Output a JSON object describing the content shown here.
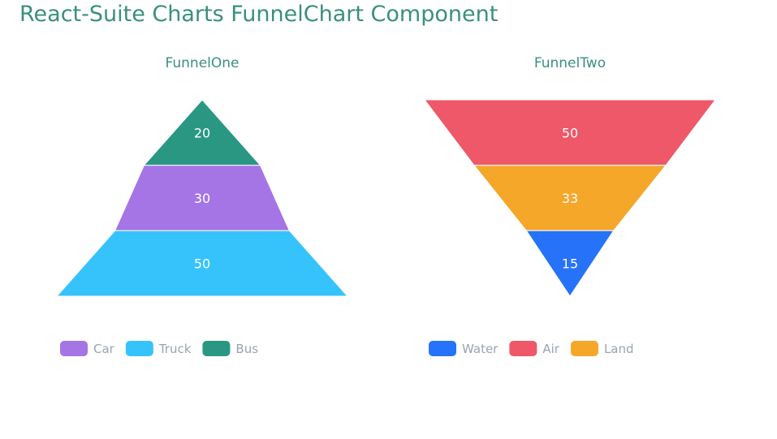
{
  "page": {
    "title": "React-Suite Charts FunnelChart Component"
  },
  "chart_data": [
    {
      "type": "funnel",
      "title": "FunnelOne",
      "sort": "ascending",
      "categories": [
        "Car",
        "Truck",
        "Bus"
      ],
      "values": [
        30,
        50,
        20
      ],
      "colors": [
        "#a575e6",
        "#36c3fc",
        "#2a9783"
      ],
      "legend": {
        "position": "bottom-left",
        "items": [
          "Car",
          "Truck",
          "Bus"
        ]
      }
    },
    {
      "type": "funnel",
      "title": "FunnelTwo",
      "sort": "descending",
      "categories": [
        "Water",
        "Air",
        "Land"
      ],
      "values": [
        15,
        50,
        33
      ],
      "colors": [
        "#2673fa",
        "#ee5868",
        "#f5a72a"
      ],
      "legend": {
        "position": "bottom-left",
        "items": [
          "Water",
          "Air",
          "Land"
        ]
      }
    }
  ]
}
